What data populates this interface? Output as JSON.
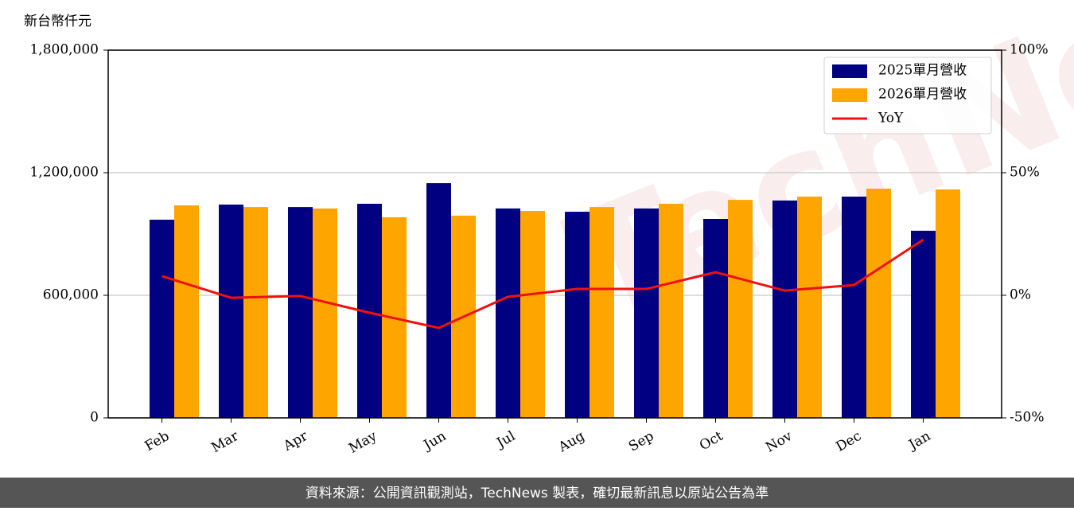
{
  "chart_data": {
    "type": "bar_line",
    "y_label": "新台幣仟元",
    "watermark": "TechNews",
    "footer": "資料來源：公開資訊觀測站，TechNews 製表，確切最新訊息以原站公告為準",
    "categories": [
      "Feb",
      "Mar",
      "Apr",
      "May",
      "Jun",
      "Jul",
      "Aug",
      "Sep",
      "Oct",
      "Nov",
      "Dec",
      "Jan"
    ],
    "series": [
      {
        "name": "2025單月營收",
        "color": "#000080",
        "type": "bar",
        "values": [
          970000,
          1044000,
          1032000,
          1048000,
          1149000,
          1025000,
          1009000,
          1025000,
          974000,
          1064000,
          1083000,
          916000
        ]
      },
      {
        "name": "2026單月營收",
        "color": "#ffa500",
        "type": "bar",
        "values": [
          1040000,
          1032000,
          1025000,
          982000,
          990000,
          1013000,
          1032000,
          1048000,
          1067000,
          1083000,
          1122000,
          1118000
        ]
      },
      {
        "name": "YoY",
        "color": "#ee1111",
        "type": "line",
        "axis": "y2",
        "values": [
          7.8,
          -1.0,
          -0.3,
          -7.1,
          -13.3,
          -0.6,
          2.6,
          2.6,
          9.4,
          1.9,
          4.2,
          22.7
        ]
      }
    ],
    "ylim": [
      0,
      1800000
    ],
    "yticks": [
      {
        "value": 0,
        "label": "0"
      },
      {
        "value": 600000,
        "label": "600,000"
      },
      {
        "value": 1200000,
        "label": "1,200,000"
      },
      {
        "value": 1800000,
        "label": "1,800,000"
      }
    ],
    "y2lim": [
      -50,
      100
    ],
    "y2ticks": [
      {
        "value": -50,
        "label": "-50%"
      },
      {
        "value": 0,
        "label": "0%"
      },
      {
        "value": 50,
        "label": "50%"
      },
      {
        "value": 100,
        "label": "100%"
      }
    ],
    "grid": true,
    "legend": "upper right"
  }
}
